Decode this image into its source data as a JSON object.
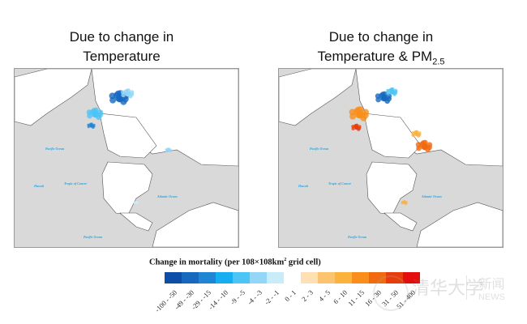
{
  "panels": [
    {
      "title_line1": "Due to change in",
      "title_line2": "Temperature",
      "title_sub": ""
    },
    {
      "title_line1": "Due to change in",
      "title_line2": "Temperature & PM",
      "title_sub": "2.5"
    }
  ],
  "ocean_labels": {
    "pacific_north": "Pacific Ocean",
    "pacific_south": "Pacific Ocean",
    "atlantic": "Atlantic Ocean",
    "hawaii": "Hawaii",
    "tropic": "Tropic of Cancer"
  },
  "legend": {
    "title": "Change in mortality (per 108×108km",
    "title_sup": "2",
    "title_end": " grid cell)",
    "bins": [
      {
        "label": "-100 - -50",
        "color": "#0d4fa8"
      },
      {
        "label": "-49 - -30",
        "color": "#1769c0"
      },
      {
        "label": "-29 - -15",
        "color": "#1f86d6"
      },
      {
        "label": "-14 - -10",
        "color": "#16aef0"
      },
      {
        "label": "-9 - -5",
        "color": "#4cc4f5"
      },
      {
        "label": "-4 - -3",
        "color": "#93d6f7"
      },
      {
        "label": "-2 - -1",
        "color": "#c9ecfb"
      },
      {
        "label": "0 - 1",
        "color": "#ffffff"
      },
      {
        "label": "2 - 3",
        "color": "#fde0b4"
      },
      {
        "label": "4 - 5",
        "color": "#fcc46f"
      },
      {
        "label": "6 - 10",
        "color": "#fbb33c"
      },
      {
        "label": "11 - 15",
        "color": "#f98e1a"
      },
      {
        "label": "16 - 30",
        "color": "#f06a10"
      },
      {
        "label": "31 - 50",
        "color": "#e83d0a"
      },
      {
        "label": "51 - 400",
        "color": "#e30f0f"
      }
    ]
  },
  "watermark": {
    "logo_text": "清华大学 Tsinghua University",
    "news_cn": "新闻",
    "news_en": "NEWS"
  }
}
